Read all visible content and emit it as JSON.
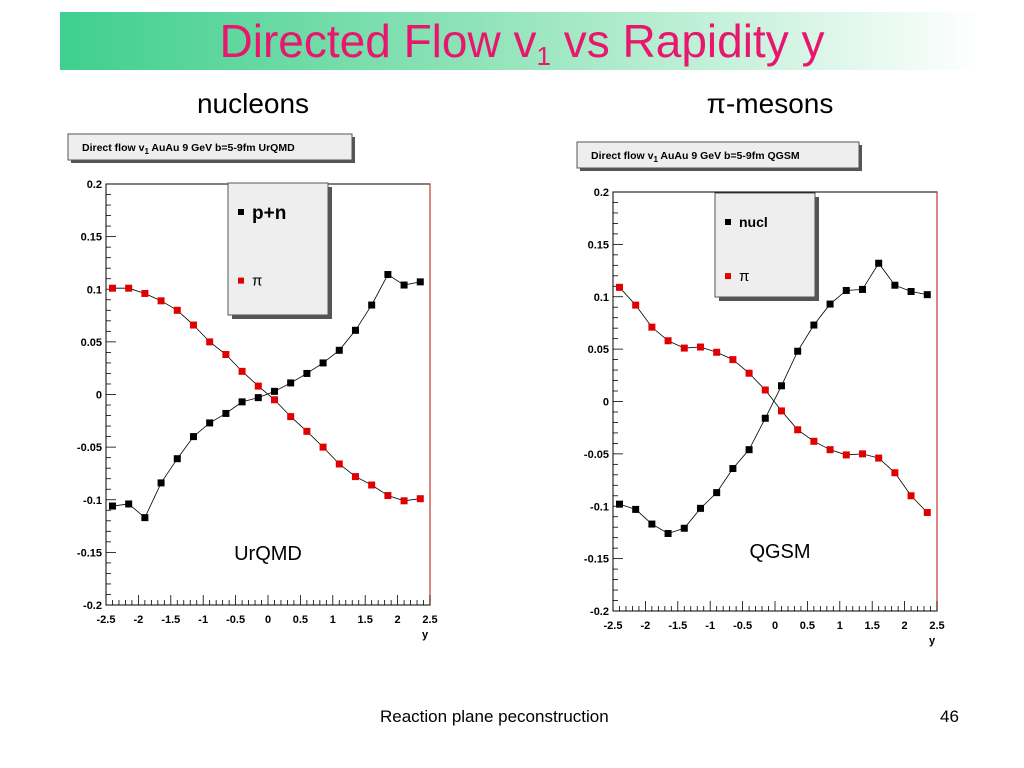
{
  "slide": {
    "title_main": "Directed Flow v",
    "title_sub": "1",
    "title_tail": " vs Rapidity y",
    "left_heading": "nucleons",
    "right_heading": "π-mesons",
    "footer": "Reaction plane peconstruction",
    "page_number": "46",
    "title_color": "#e8176e"
  },
  "chart_data": [
    {
      "type": "scatter",
      "title": "Direct flow v1  AuAu 9 GeV  b=5-9fm  UrQMD",
      "title_main": "Direct flow v",
      "title_sub": "1",
      "title_tail": "  AuAu 9 GeV  b=5-9fm  UrQMD",
      "xlabel": "y",
      "ylabel": "",
      "xlim": [
        -2.5,
        2.5
      ],
      "ylim": [
        -0.2,
        0.2
      ],
      "xticks": [
        "-2.5",
        "-2",
        "-1.5",
        "-1",
        "-0.5",
        "0",
        "0.5",
        "1",
        "1.5",
        "2",
        "2.5"
      ],
      "yticks": [
        "0.2",
        "0.15",
        "0.1",
        "0.05",
        "0",
        "-0.05",
        "-0.1",
        "-0.15",
        "-0.2"
      ],
      "annotation": "UrQMD",
      "legend_position": "top-center",
      "grid": false,
      "series": [
        {
          "name": "p+n",
          "color": "#000000",
          "x": [
            -2.4,
            -2.15,
            -1.9,
            -1.65,
            -1.4,
            -1.15,
            -0.9,
            -0.65,
            -0.4,
            -0.15,
            0.1,
            0.35,
            0.6,
            0.85,
            1.1,
            1.35,
            1.6,
            1.85,
            2.1,
            2.35
          ],
          "y": [
            -0.106,
            -0.104,
            -0.117,
            -0.084,
            -0.061,
            -0.04,
            -0.027,
            -0.018,
            -0.007,
            -0.003,
            0.003,
            0.011,
            0.02,
            0.03,
            0.042,
            0.061,
            0.085,
            0.114,
            0.104,
            0.107
          ]
        },
        {
          "name": "π",
          "color": "#e00000",
          "x": [
            -2.4,
            -2.15,
            -1.9,
            -1.65,
            -1.4,
            -1.15,
            -0.9,
            -0.65,
            -0.4,
            -0.15,
            0.1,
            0.35,
            0.6,
            0.85,
            1.1,
            1.35,
            1.6,
            1.85,
            2.1,
            2.35
          ],
          "y": [
            0.101,
            0.101,
            0.096,
            0.089,
            0.08,
            0.066,
            0.05,
            0.038,
            0.022,
            0.008,
            -0.005,
            -0.021,
            -0.035,
            -0.05,
            -0.066,
            -0.078,
            -0.086,
            -0.096,
            -0.101,
            -0.099
          ]
        }
      ]
    },
    {
      "type": "scatter",
      "title": "Direct flow v1  AuAu 9 GeV  b=5-9fm  QGSM",
      "title_main": "Direct flow v",
      "title_sub": "1",
      "title_tail": "  AuAu 9 GeV  b=5-9fm  QGSM",
      "xlabel": "y",
      "ylabel": "",
      "xlim": [
        -2.5,
        2.5
      ],
      "ylim": [
        -0.2,
        0.2
      ],
      "xticks": [
        "-2.5",
        "-2",
        "-1.5",
        "-1",
        "-0.5",
        "0",
        "0.5",
        "1",
        "1.5",
        "2",
        "2.5"
      ],
      "yticks": [
        "0.2",
        "0.15",
        "0.1",
        "0.05",
        "0",
        "-0.05",
        "-0.1",
        "-0.15",
        "-0.2"
      ],
      "annotation": "QGSM",
      "legend_position": "top-center",
      "grid": false,
      "series": [
        {
          "name": "nucl",
          "color": "#000000",
          "x": [
            -2.4,
            -2.15,
            -1.9,
            -1.65,
            -1.4,
            -1.15,
            -0.9,
            -0.65,
            -0.4,
            -0.15,
            0.1,
            0.35,
            0.6,
            0.85,
            1.1,
            1.35,
            1.6,
            1.85,
            2.1,
            2.35
          ],
          "y": [
            -0.098,
            -0.103,
            -0.117,
            -0.126,
            -0.121,
            -0.102,
            -0.087,
            -0.064,
            -0.046,
            -0.016,
            0.015,
            0.048,
            0.073,
            0.093,
            0.106,
            0.107,
            0.132,
            0.111,
            0.105,
            0.102
          ]
        },
        {
          "name": "π",
          "color": "#e00000",
          "x": [
            -2.4,
            -2.15,
            -1.9,
            -1.65,
            -1.4,
            -1.15,
            -0.9,
            -0.65,
            -0.4,
            -0.15,
            0.1,
            0.35,
            0.6,
            0.85,
            1.1,
            1.35,
            1.6,
            1.85,
            2.1,
            2.35
          ],
          "y": [
            0.109,
            0.092,
            0.071,
            0.058,
            0.051,
            0.052,
            0.047,
            0.04,
            0.027,
            0.011,
            -0.009,
            -0.027,
            -0.038,
            -0.046,
            -0.051,
            -0.05,
            -0.054,
            -0.068,
            -0.09,
            -0.106
          ]
        }
      ]
    }
  ]
}
